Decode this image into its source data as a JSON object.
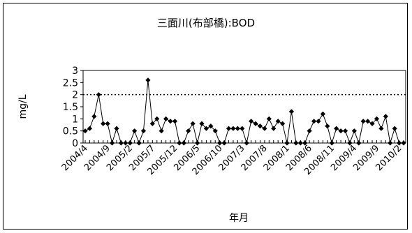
{
  "chart_data": {
    "type": "line",
    "title": "三面川(布部橋):BOD",
    "xlabel": "年月",
    "ylabel": "mg/L",
    "ylim": [
      0,
      3
    ],
    "yticks": [
      "0",
      "0.5",
      "1",
      "1.5",
      "2",
      "2.5",
      "3"
    ],
    "ytick_values": [
      0,
      0.5,
      1,
      1.5,
      2,
      2.5,
      3
    ],
    "x_start": "2004/4",
    "xtick_labels": [
      "2004/4",
      "2004/9",
      "2005/2",
      "2005/7",
      "2005/12",
      "2006/5",
      "2006/10",
      "2007/3",
      "2007/8",
      "2008/1",
      "2008/6",
      "2008/11",
      "2009/4",
      "2009/9",
      "2010/2"
    ],
    "reference_line": {
      "y": 2,
      "style": "dotted"
    },
    "grid": false,
    "legend": false,
    "marker": "diamond",
    "line_color": "#000000",
    "series": [
      {
        "values": [
          0.5,
          0.6,
          1.1,
          2.0,
          0.8,
          0.8,
          0.0,
          0.6,
          0.0,
          0.0,
          0.0,
          0.5,
          0.0,
          0.5,
          2.6,
          0.8,
          1.0,
          0.5,
          1.0,
          0.9,
          0.9,
          0.0,
          0.0,
          0.5,
          0.8,
          0.0,
          0.8,
          0.6,
          0.7,
          0.5,
          0.0,
          0.0,
          0.6,
          0.6,
          0.6,
          0.6,
          0.0,
          0.9,
          0.8,
          0.7,
          0.6,
          1.0,
          0.6,
          0.9,
          0.8,
          0.0,
          1.3,
          0.0,
          0.0,
          0.0,
          0.5,
          0.9,
          0.9,
          1.2,
          0.7,
          0.0,
          0.6,
          0.5,
          0.5,
          0.0,
          0.5,
          0.0,
          0.9,
          0.9,
          0.8,
          1.0,
          0.6,
          1.1,
          0.0,
          0.6,
          0.0,
          0.0
        ]
      }
    ]
  }
}
